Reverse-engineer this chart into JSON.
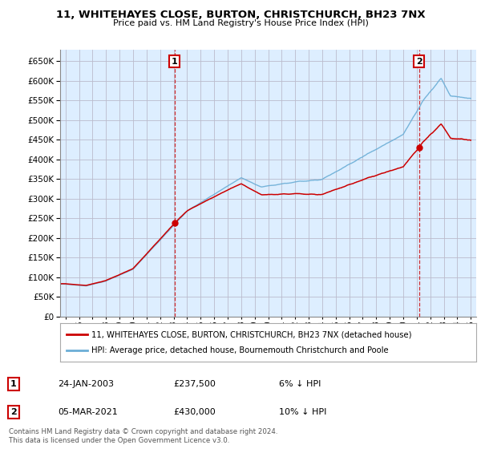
{
  "title": "11, WHITEHAYES CLOSE, BURTON, CHRISTCHURCH, BH23 7NX",
  "subtitle": "Price paid vs. HM Land Registry's House Price Index (HPI)",
  "legend_line1": "11, WHITEHAYES CLOSE, BURTON, CHRISTCHURCH, BH23 7NX (detached house)",
  "legend_line2": "HPI: Average price, detached house, Bournemouth Christchurch and Poole",
  "annotation1_date": "24-JAN-2003",
  "annotation1_price": "£237,500",
  "annotation1_note": "6% ↓ HPI",
  "annotation2_date": "05-MAR-2021",
  "annotation2_price": "£430,000",
  "annotation2_note": "10% ↓ HPI",
  "footer": "Contains HM Land Registry data © Crown copyright and database right 2024.\nThis data is licensed under the Open Government Licence v3.0.",
  "hpi_color": "#6baed6",
  "price_color": "#cc0000",
  "annotation_color": "#cc0000",
  "chart_bg_color": "#ddeeff",
  "background_color": "#ffffff",
  "grid_color": "#bbbbcc",
  "ylim_min": 0,
  "ylim_max": 680000,
  "yticks": [
    0,
    50000,
    100000,
    150000,
    200000,
    250000,
    300000,
    350000,
    400000,
    450000,
    500000,
    550000,
    600000,
    650000
  ],
  "sale1_x": 2003.07,
  "sale1_y": 237500,
  "sale2_x": 2021.17,
  "sale2_y": 430000,
  "xmin": 1994.6,
  "xmax": 2025.4
}
